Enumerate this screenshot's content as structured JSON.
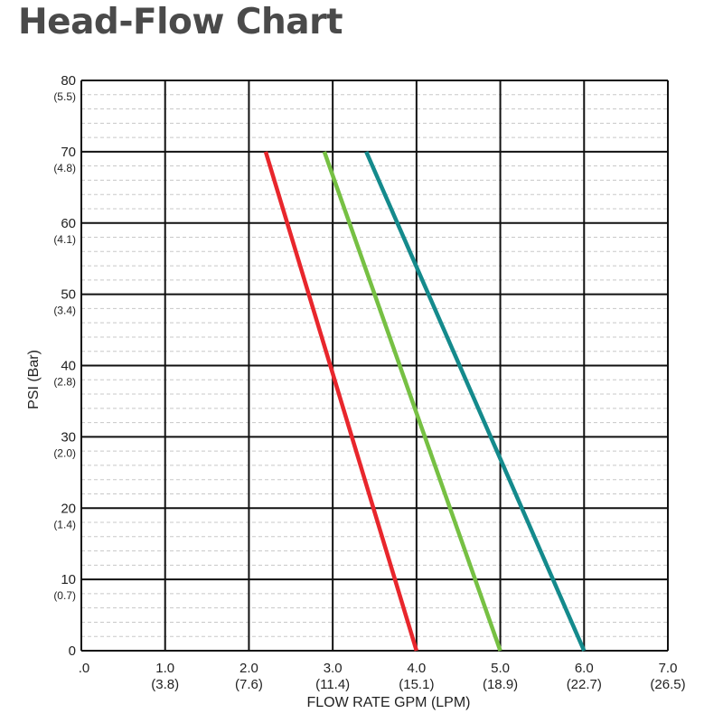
{
  "title": "Head-Flow Chart",
  "chart_data": {
    "type": "line",
    "title": "Head-Flow Chart",
    "xlabel": "FLOW RATE GPM (LPM)",
    "ylabel": "PSI (Bar)",
    "xlim": [
      0,
      7
    ],
    "ylim": [
      0,
      80
    ],
    "x_ticks": [
      {
        "value": 0,
        "label": ".0",
        "sub": ""
      },
      {
        "value": 1,
        "label": "1.0",
        "sub": "(3.8)"
      },
      {
        "value": 2,
        "label": "2.0",
        "sub": "(7.6)"
      },
      {
        "value": 3,
        "label": "3.0",
        "sub": "(11.4)"
      },
      {
        "value": 4,
        "label": "4.0",
        "sub": "(15.1)"
      },
      {
        "value": 5,
        "label": "5.0",
        "sub": "(18.9)"
      },
      {
        "value": 6,
        "label": "6.0",
        "sub": "(22.7)"
      },
      {
        "value": 7,
        "label": "7.0",
        "sub": "(26.5)"
      }
    ],
    "y_ticks": [
      {
        "value": 0,
        "label": "0",
        "sub": ""
      },
      {
        "value": 10,
        "label": "10",
        "sub": "(0.7)"
      },
      {
        "value": 20,
        "label": "20",
        "sub": "(1.4)"
      },
      {
        "value": 30,
        "label": "30",
        "sub": "(2.0)"
      },
      {
        "value": 40,
        "label": "40",
        "sub": "(2.8)"
      },
      {
        "value": 50,
        "label": "50",
        "sub": "(3.4)"
      },
      {
        "value": 60,
        "label": "60",
        "sub": "(4.1)"
      },
      {
        "value": 70,
        "label": "70",
        "sub": "(4.8)"
      },
      {
        "value": 80,
        "label": "80",
        "sub": "(5.5)"
      }
    ],
    "grid": true,
    "minor_grid": "dashed",
    "series": [
      {
        "color": "#e8262c",
        "points": [
          [
            2.2,
            70
          ],
          [
            4.0,
            0
          ]
        ]
      },
      {
        "color": "#76c043",
        "points": [
          [
            2.9,
            70
          ],
          [
            5.0,
            0
          ]
        ]
      },
      {
        "color": "#148a8c",
        "points": [
          [
            3.4,
            70
          ],
          [
            6.0,
            0
          ]
        ]
      }
    ]
  }
}
